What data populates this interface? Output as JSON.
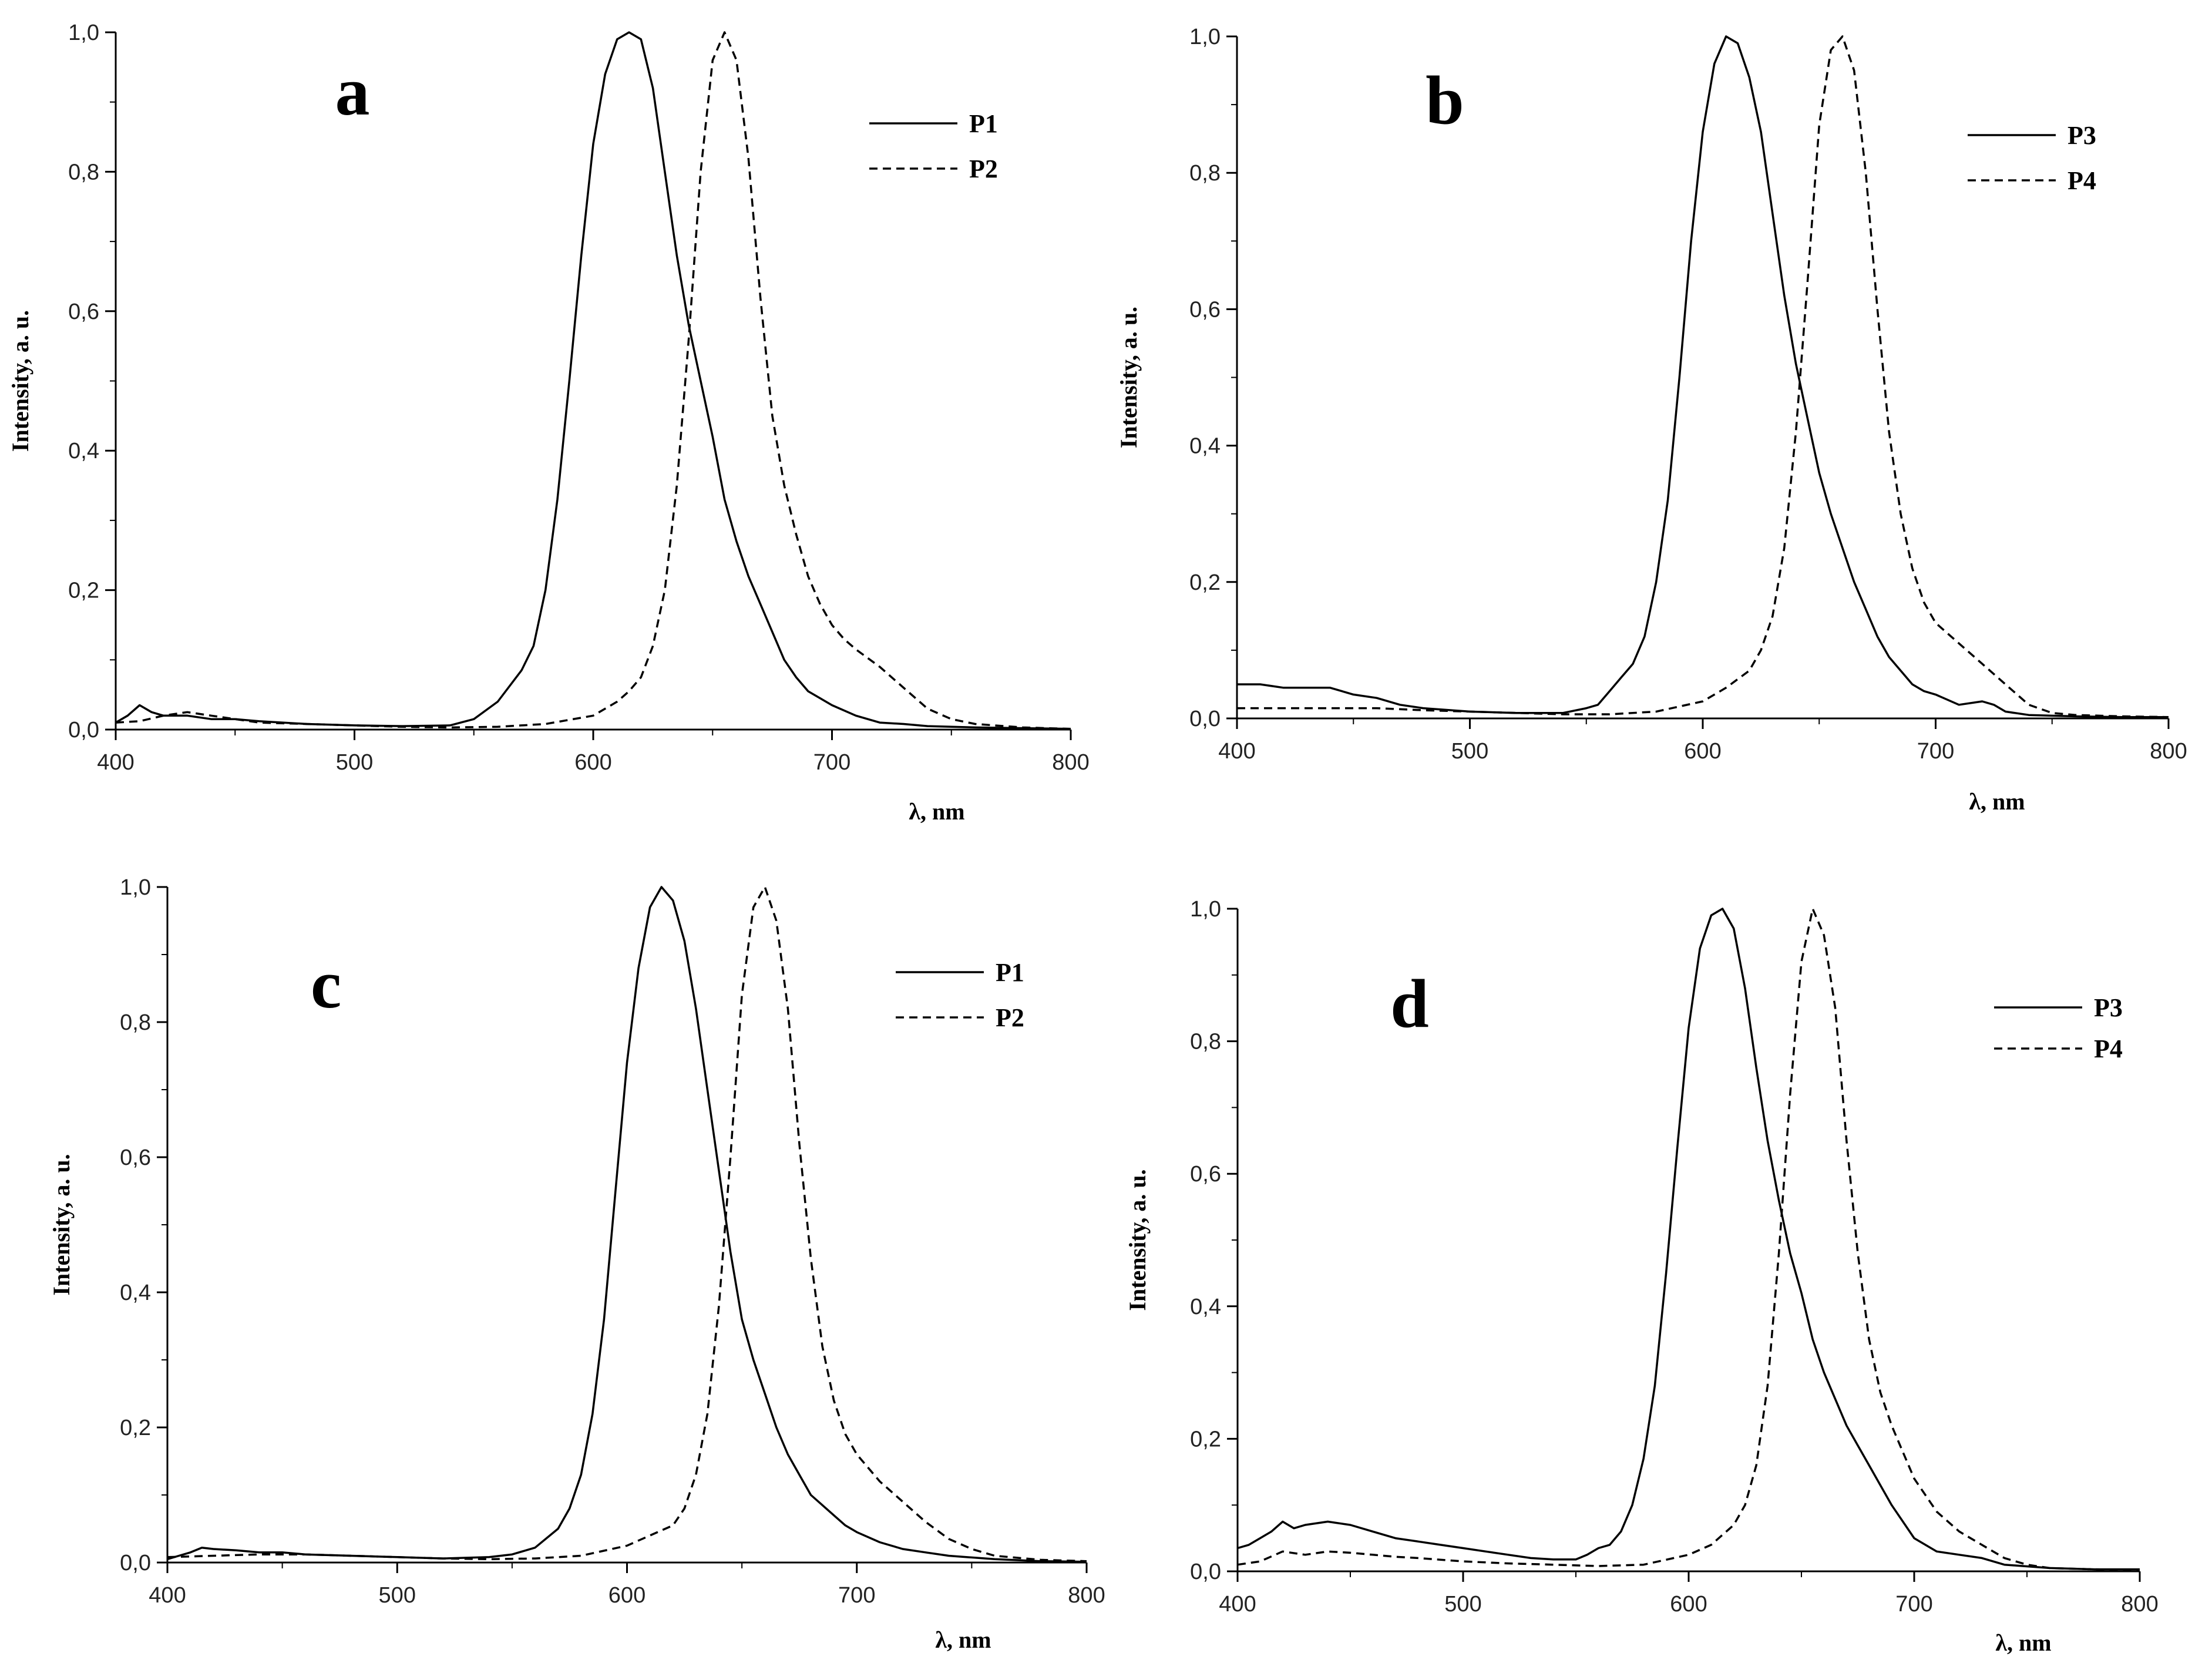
{
  "chart_data": [
    {
      "type": "line",
      "panel_label": "a",
      "xlabel": "λ, nm",
      "ylabel": "Intensity, a. u.",
      "xlim": [
        400,
        800
      ],
      "ylim": [
        0,
        1
      ],
      "x_ticks": [
        "400",
        "500",
        "600",
        "700",
        "800"
      ],
      "y_ticks": [
        "0,0",
        "0,2",
        "0,4",
        "0,6",
        "0,8",
        "1,0"
      ],
      "legend_position": "top-right",
      "series": [
        {
          "name": "P1",
          "style": "solid",
          "x": [
            400,
            405,
            410,
            415,
            420,
            430,
            440,
            450,
            460,
            480,
            500,
            520,
            540,
            550,
            560,
            570,
            575,
            580,
            585,
            590,
            595,
            600,
            605,
            610,
            615,
            620,
            625,
            630,
            635,
            640,
            645,
            650,
            655,
            660,
            665,
            670,
            675,
            680,
            685,
            690,
            695,
            700,
            710,
            720,
            730,
            740,
            760,
            780,
            800
          ],
          "y": [
            0.01,
            0.02,
            0.035,
            0.025,
            0.02,
            0.02,
            0.015,
            0.015,
            0.012,
            0.008,
            0.006,
            0.005,
            0.006,
            0.015,
            0.04,
            0.085,
            0.12,
            0.2,
            0.33,
            0.5,
            0.68,
            0.84,
            0.94,
            0.99,
            1.0,
            0.99,
            0.92,
            0.8,
            0.68,
            0.58,
            0.5,
            0.42,
            0.33,
            0.27,
            0.22,
            0.18,
            0.14,
            0.1,
            0.075,
            0.055,
            0.045,
            0.035,
            0.02,
            0.01,
            0.008,
            0.005,
            0.003,
            0.002,
            0.001
          ]
        },
        {
          "name": "P2",
          "style": "dashed",
          "x": [
            400,
            410,
            420,
            430,
            440,
            450,
            460,
            480,
            500,
            520,
            540,
            560,
            580,
            600,
            610,
            615,
            620,
            625,
            630,
            635,
            640,
            645,
            650,
            655,
            660,
            665,
            670,
            675,
            680,
            685,
            690,
            695,
            700,
            705,
            710,
            720,
            730,
            740,
            750,
            760,
            780,
            800
          ],
          "y": [
            0.01,
            0.012,
            0.02,
            0.025,
            0.02,
            0.015,
            0.01,
            0.008,
            0.006,
            0.004,
            0.003,
            0.004,
            0.008,
            0.02,
            0.04,
            0.055,
            0.075,
            0.12,
            0.2,
            0.35,
            0.56,
            0.8,
            0.96,
            1.0,
            0.96,
            0.82,
            0.62,
            0.45,
            0.35,
            0.28,
            0.22,
            0.18,
            0.15,
            0.13,
            0.115,
            0.09,
            0.06,
            0.03,
            0.015,
            0.008,
            0.003,
            0.001
          ]
        }
      ]
    },
    {
      "type": "line",
      "panel_label": "b",
      "xlabel": "λ, nm",
      "ylabel": "Intensity, a. u.",
      "xlim": [
        400,
        800
      ],
      "ylim": [
        0,
        1
      ],
      "x_ticks": [
        "400",
        "500",
        "600",
        "700",
        "800"
      ],
      "y_ticks": [
        "0,0",
        "0,2",
        "0,4",
        "0,6",
        "0,8",
        "1,0"
      ],
      "legend_position": "top-right",
      "series": [
        {
          "name": "P3",
          "style": "solid",
          "x": [
            400,
            410,
            420,
            430,
            440,
            450,
            460,
            470,
            480,
            500,
            520,
            540,
            550,
            555,
            560,
            565,
            570,
            575,
            580,
            585,
            590,
            595,
            600,
            605,
            610,
            615,
            620,
            625,
            630,
            635,
            640,
            645,
            650,
            655,
            660,
            665,
            670,
            675,
            680,
            685,
            690,
            695,
            700,
            710,
            720,
            725,
            730,
            740,
            760,
            780,
            800
          ],
          "y": [
            0.05,
            0.05,
            0.045,
            0.045,
            0.045,
            0.035,
            0.03,
            0.02,
            0.015,
            0.01,
            0.008,
            0.008,
            0.015,
            0.02,
            0.04,
            0.06,
            0.08,
            0.12,
            0.2,
            0.32,
            0.5,
            0.7,
            0.86,
            0.96,
            1.0,
            0.99,
            0.94,
            0.86,
            0.74,
            0.62,
            0.52,
            0.44,
            0.36,
            0.3,
            0.25,
            0.2,
            0.16,
            0.12,
            0.09,
            0.07,
            0.05,
            0.04,
            0.035,
            0.02,
            0.025,
            0.02,
            0.01,
            0.005,
            0.003,
            0.002,
            0.002
          ]
        },
        {
          "name": "P4",
          "style": "dashed",
          "x": [
            400,
            420,
            440,
            460,
            480,
            500,
            520,
            540,
            560,
            580,
            600,
            610,
            620,
            625,
            630,
            635,
            640,
            645,
            650,
            655,
            660,
            665,
            670,
            675,
            680,
            685,
            690,
            695,
            700,
            710,
            720,
            730,
            740,
            750,
            760,
            780,
            800
          ],
          "y": [
            0.015,
            0.015,
            0.015,
            0.015,
            0.012,
            0.01,
            0.008,
            0.006,
            0.006,
            0.01,
            0.025,
            0.045,
            0.07,
            0.1,
            0.15,
            0.25,
            0.42,
            0.64,
            0.87,
            0.98,
            1.0,
            0.95,
            0.8,
            0.6,
            0.42,
            0.3,
            0.22,
            0.17,
            0.14,
            0.11,
            0.08,
            0.05,
            0.02,
            0.008,
            0.005,
            0.003,
            0.002
          ]
        }
      ]
    },
    {
      "type": "line",
      "panel_label": "c",
      "xlabel": "λ, nm",
      "ylabel": "Intensity, a. u.",
      "xlim": [
        400,
        800
      ],
      "ylim": [
        0,
        1
      ],
      "x_ticks": [
        "400",
        "500",
        "600",
        "700",
        "800"
      ],
      "y_ticks": [
        "0,0",
        "0,2",
        "0,4",
        "0,6",
        "0,8",
        "1,0"
      ],
      "legend_position": "top-right",
      "series": [
        {
          "name": "P1",
          "style": "solid",
          "x": [
            400,
            405,
            410,
            415,
            420,
            430,
            440,
            450,
            460,
            480,
            500,
            520,
            540,
            550,
            560,
            570,
            575,
            580,
            585,
            590,
            595,
            600,
            605,
            610,
            615,
            620,
            625,
            630,
            635,
            640,
            645,
            650,
            655,
            660,
            665,
            670,
            675,
            680,
            685,
            690,
            695,
            700,
            710,
            720,
            730,
            740,
            760,
            780,
            800
          ],
          "y": [
            0.005,
            0.01,
            0.015,
            0.022,
            0.02,
            0.018,
            0.015,
            0.015,
            0.012,
            0.01,
            0.008,
            0.006,
            0.008,
            0.012,
            0.022,
            0.05,
            0.08,
            0.13,
            0.22,
            0.36,
            0.55,
            0.74,
            0.88,
            0.97,
            1.0,
            0.98,
            0.92,
            0.82,
            0.7,
            0.58,
            0.46,
            0.36,
            0.3,
            0.25,
            0.2,
            0.16,
            0.13,
            0.1,
            0.085,
            0.07,
            0.055,
            0.045,
            0.03,
            0.02,
            0.015,
            0.01,
            0.005,
            0.002,
            0.001
          ]
        },
        {
          "name": "P2",
          "style": "dashed",
          "x": [
            400,
            420,
            440,
            460,
            480,
            500,
            520,
            540,
            560,
            580,
            600,
            610,
            620,
            625,
            630,
            635,
            640,
            645,
            650,
            655,
            660,
            665,
            670,
            675,
            680,
            685,
            690,
            695,
            700,
            710,
            720,
            730,
            740,
            750,
            760,
            780,
            800
          ],
          "y": [
            0.008,
            0.01,
            0.012,
            0.012,
            0.01,
            0.008,
            0.006,
            0.005,
            0.006,
            0.01,
            0.025,
            0.04,
            0.055,
            0.08,
            0.13,
            0.22,
            0.38,
            0.6,
            0.84,
            0.97,
            1.0,
            0.95,
            0.82,
            0.62,
            0.45,
            0.32,
            0.24,
            0.19,
            0.16,
            0.12,
            0.09,
            0.06,
            0.035,
            0.02,
            0.01,
            0.004,
            0.002
          ]
        }
      ]
    },
    {
      "type": "line",
      "panel_label": "d",
      "xlabel": "λ, nm",
      "ylabel": "Intensity, a. u.",
      "xlim": [
        400,
        800
      ],
      "ylim": [
        0,
        1
      ],
      "x_ticks": [
        "400",
        "500",
        "600",
        "700",
        "800"
      ],
      "y_ticks": [
        "0,0",
        "0,2",
        "0,4",
        "0,6",
        "0,8",
        "1,0"
      ],
      "legend_position": "top-right",
      "series": [
        {
          "name": "P3",
          "style": "solid",
          "x": [
            400,
            405,
            410,
            415,
            420,
            425,
            430,
            440,
            450,
            460,
            470,
            480,
            490,
            500,
            510,
            520,
            530,
            540,
            550,
            555,
            560,
            565,
            570,
            575,
            580,
            585,
            590,
            595,
            600,
            605,
            610,
            615,
            620,
            625,
            630,
            635,
            640,
            645,
            650,
            655,
            660,
            665,
            670,
            675,
            680,
            685,
            690,
            695,
            700,
            710,
            720,
            730,
            740,
            760,
            780,
            800
          ],
          "y": [
            0.035,
            0.04,
            0.05,
            0.06,
            0.075,
            0.065,
            0.07,
            0.075,
            0.07,
            0.06,
            0.05,
            0.045,
            0.04,
            0.035,
            0.03,
            0.025,
            0.02,
            0.018,
            0.018,
            0.025,
            0.035,
            0.04,
            0.06,
            0.1,
            0.17,
            0.28,
            0.45,
            0.64,
            0.82,
            0.94,
            0.99,
            1.0,
            0.97,
            0.88,
            0.76,
            0.65,
            0.56,
            0.48,
            0.42,
            0.35,
            0.3,
            0.26,
            0.22,
            0.19,
            0.16,
            0.13,
            0.1,
            0.075,
            0.05,
            0.03,
            0.025,
            0.02,
            0.01,
            0.005,
            0.003,
            0.003
          ]
        },
        {
          "name": "P4",
          "style": "dashed",
          "x": [
            400,
            410,
            420,
            430,
            440,
            450,
            460,
            470,
            480,
            500,
            520,
            540,
            560,
            580,
            600,
            610,
            620,
            625,
            630,
            635,
            640,
            645,
            650,
            655,
            660,
            665,
            670,
            675,
            680,
            685,
            690,
            695,
            700,
            710,
            720,
            730,
            740,
            750,
            760,
            780,
            800
          ],
          "y": [
            0.01,
            0.015,
            0.03,
            0.025,
            0.03,
            0.028,
            0.025,
            0.022,
            0.02,
            0.015,
            0.012,
            0.01,
            0.008,
            0.01,
            0.025,
            0.04,
            0.07,
            0.1,
            0.16,
            0.28,
            0.48,
            0.72,
            0.92,
            1.0,
            0.96,
            0.85,
            0.65,
            0.48,
            0.35,
            0.27,
            0.22,
            0.18,
            0.14,
            0.09,
            0.06,
            0.04,
            0.02,
            0.01,
            0.005,
            0.003,
            0.002
          ]
        }
      ]
    }
  ]
}
